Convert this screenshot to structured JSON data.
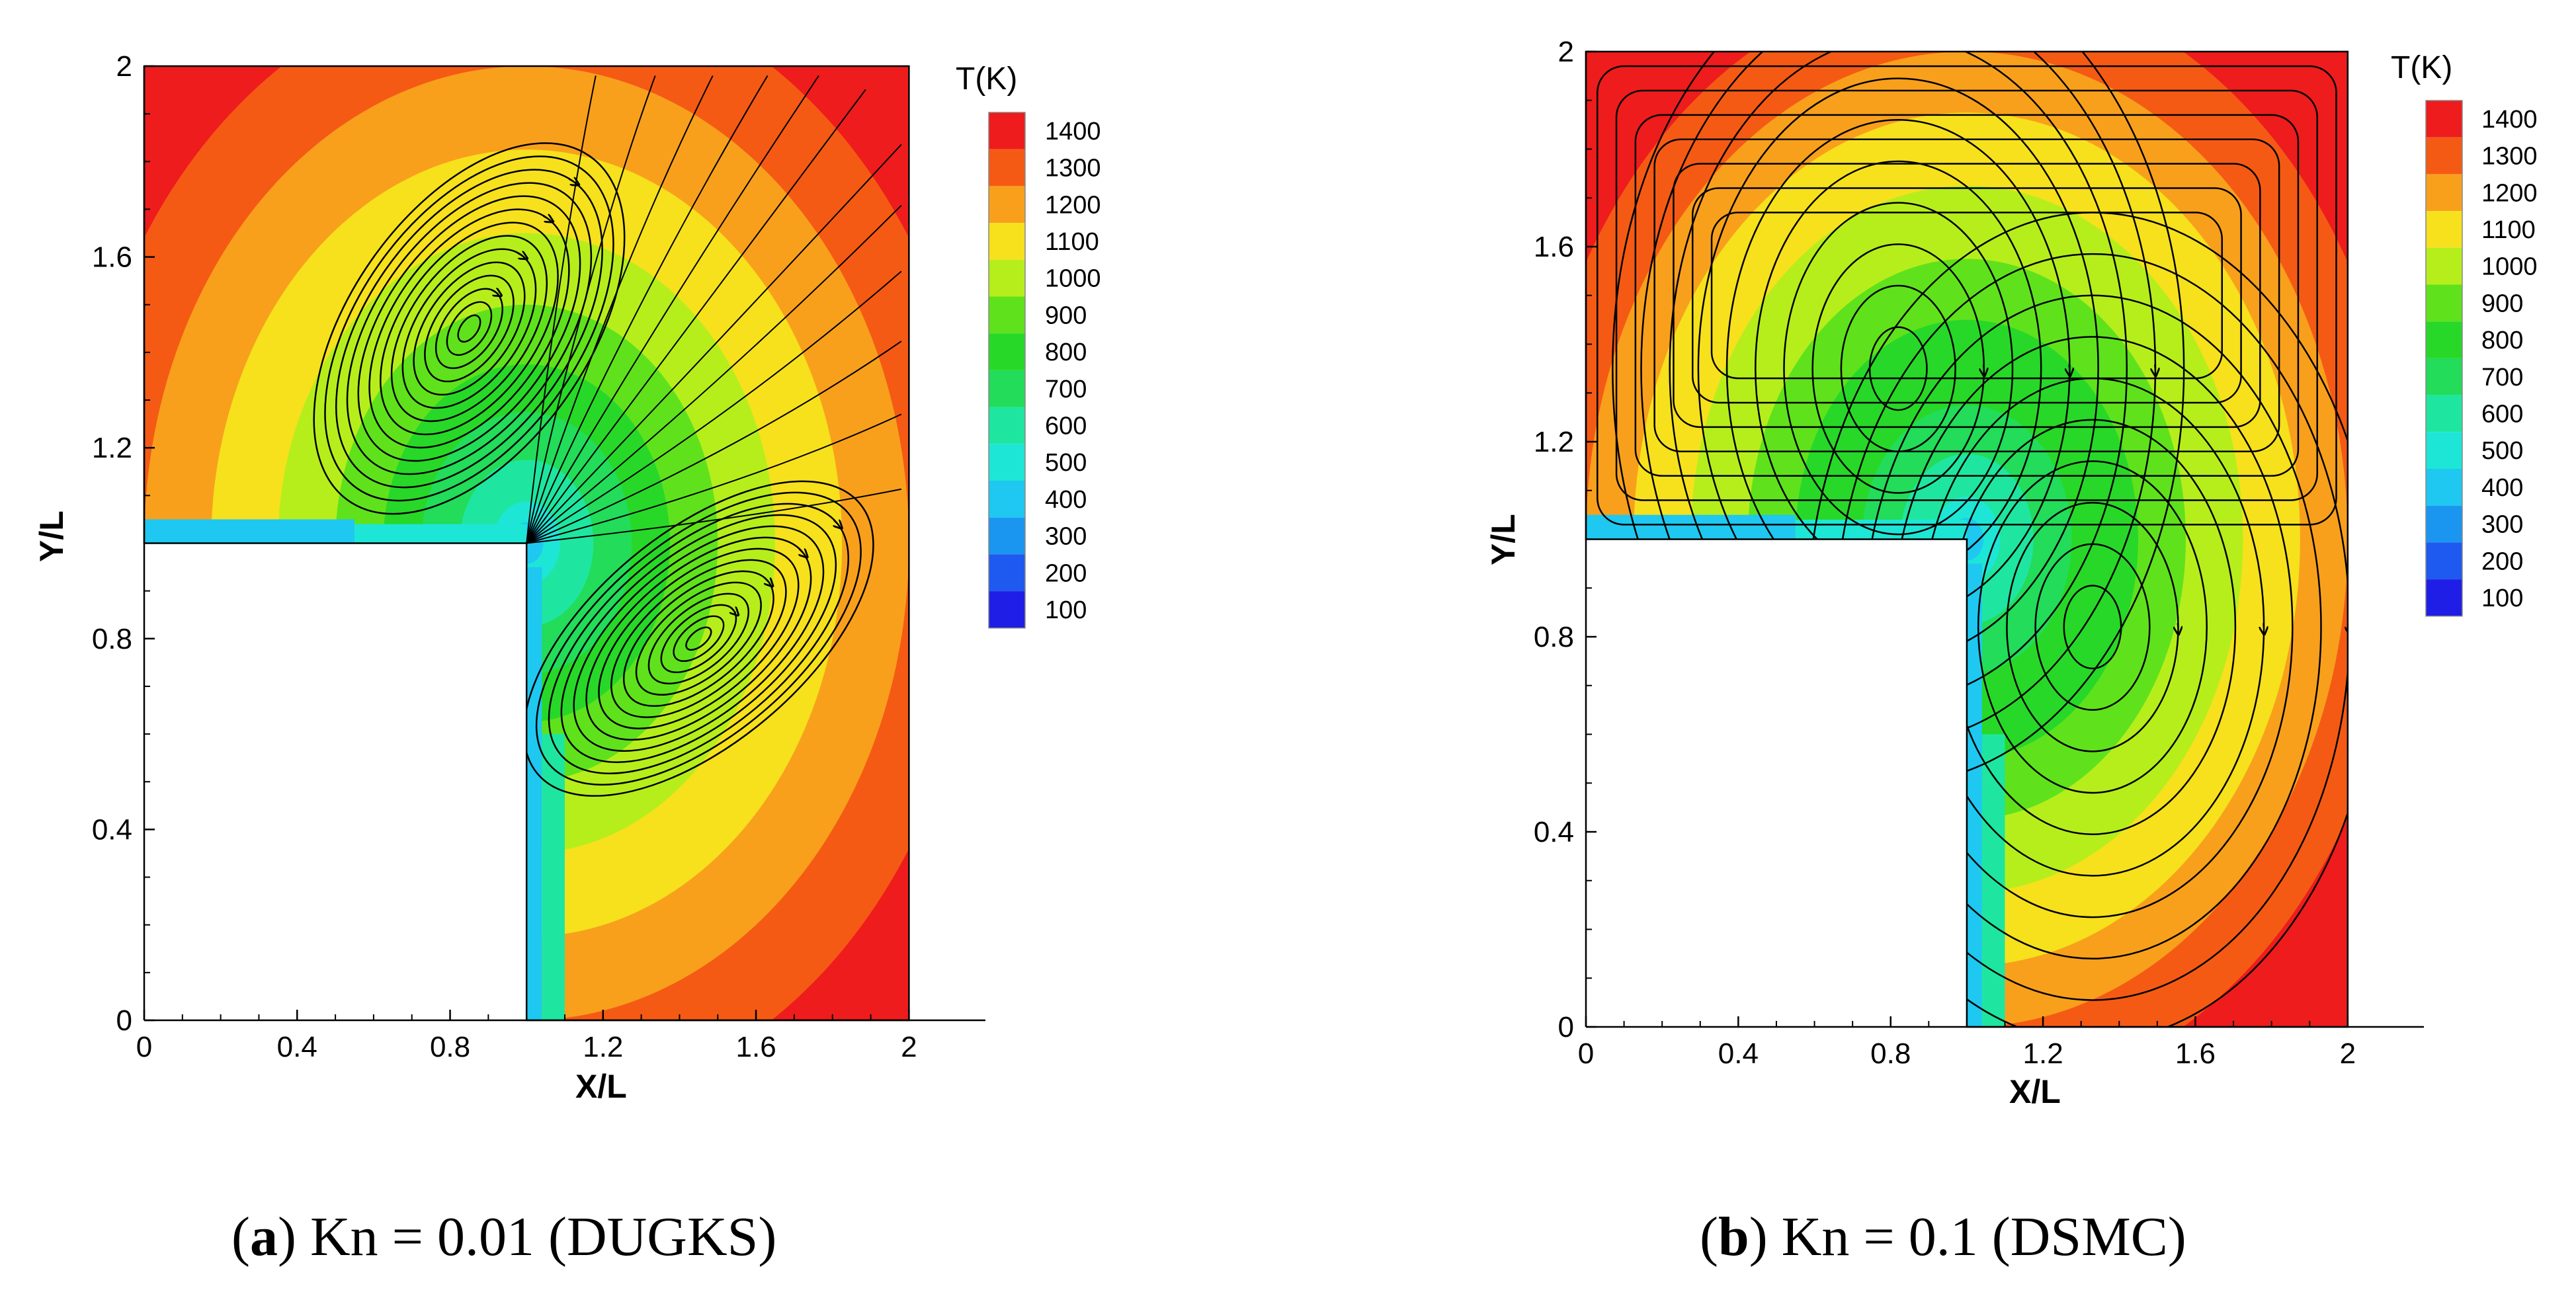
{
  "chart_data": [
    {
      "type": "heatmap",
      "caption": {
        "letter": "a",
        "text": ") Kn = 0.01 (DUGKS)"
      },
      "xlabel": "X/L",
      "ylabel": "Y/L",
      "xlim": [
        0,
        2.2
      ],
      "ylim": [
        0,
        2
      ],
      "x_ticks": [
        "0",
        "0.4",
        "0.8",
        "1.2",
        "1.6",
        "2"
      ],
      "y_ticks": [
        "0",
        "0.4",
        "0.8",
        "1.2",
        "1.6",
        "2"
      ],
      "legend_title": "T(K)",
      "legend_levels": [
        "1400",
        "1300",
        "1200",
        "1100",
        "1000",
        "900",
        "800",
        "700",
        "600",
        "500",
        "400",
        "300",
        "200",
        "100"
      ],
      "domain": "L-shaped cavity, solid block 0<x<1, 0<y<1",
      "vortices": [
        {
          "x": 0.85,
          "y": 1.45
        },
        {
          "x": 1.45,
          "y": 0.8
        }
      ]
    },
    {
      "type": "heatmap",
      "caption": {
        "letter": "b",
        "text": ") Kn = 0.1 (DSMC)"
      },
      "xlabel": "X/L",
      "ylabel": "Y/L",
      "xlim": [
        0,
        2.2
      ],
      "ylim": [
        0,
        2
      ],
      "x_ticks": [
        "0",
        "0.4",
        "0.8",
        "1.2",
        "1.6",
        "2"
      ],
      "y_ticks": [
        "0",
        "0.4",
        "0.8",
        "1.2",
        "1.6",
        "2"
      ],
      "legend_title": "T(K)",
      "legend_levels": [
        "1400",
        "1300",
        "1200",
        "1100",
        "1000",
        "900",
        "800",
        "700",
        "600",
        "500",
        "400",
        "300",
        "200",
        "100"
      ],
      "domain": "L-shaped cavity, solid block 0<x<1, 0<y<1",
      "vortices": [
        {
          "x": 0.82,
          "y": 1.35
        },
        {
          "x": 1.33,
          "y": 0.82
        }
      ]
    }
  ],
  "colors": {
    "1400": "#ee1c1c",
    "1300": "#f55a14",
    "1200": "#f8a01c",
    "1100": "#f6e11c",
    "1000": "#b6ee1c",
    "900": "#5fe21c",
    "800": "#28d828",
    "700": "#22dc5a",
    "600": "#1ee6a0",
    "500": "#1ee6d6",
    "400": "#1ec8f0",
    "300": "#1a96f0",
    "200": "#1e5af0",
    "100": "#1e1ee6"
  }
}
